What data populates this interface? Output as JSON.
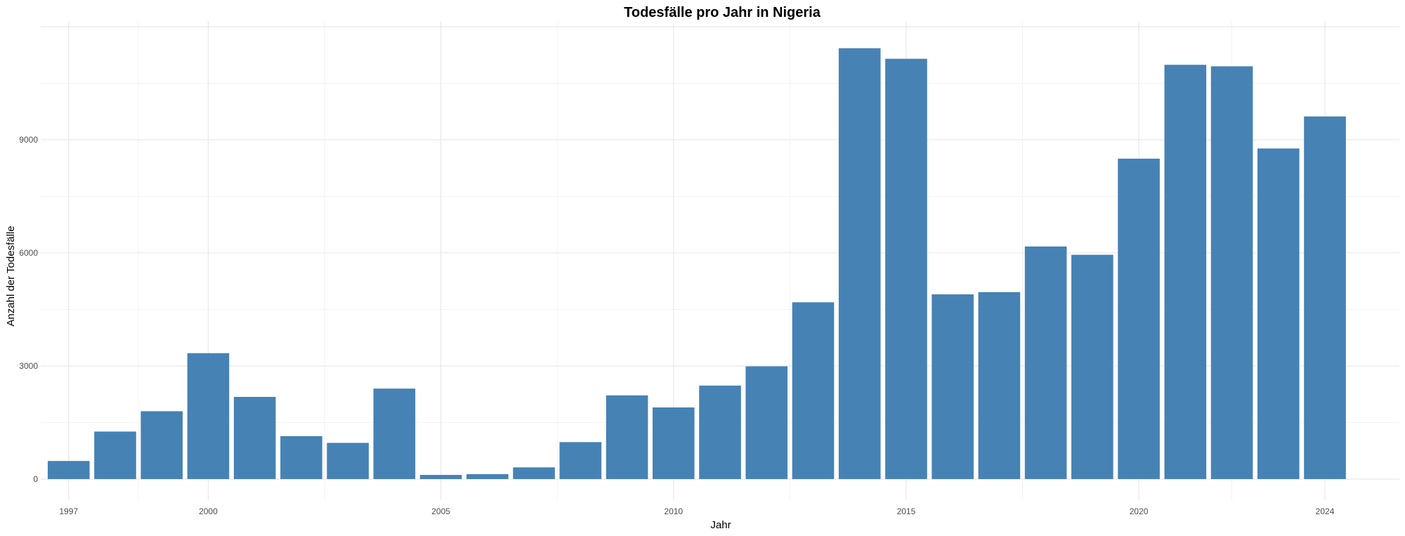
{
  "chart_data": {
    "type": "bar",
    "title": "Todesfälle pro Jahr in Nigeria",
    "xlabel": "Jahr",
    "ylabel": "Anzahl der Todesfälle",
    "color": "#4682B4",
    "background": "#ffffff",
    "grid": true,
    "legend": "none",
    "xlim": [
      1996.4,
      2025.6
    ],
    "ylim": [
      -560,
      12150
    ],
    "x_ticks": [
      1997,
      2000,
      2005,
      2010,
      2015,
      2020,
      2024
    ],
    "y_ticks": [
      0,
      3000,
      6000,
      9000
    ],
    "x": [
      1997,
      1998,
      1999,
      2000,
      2001,
      2002,
      2003,
      2004,
      2005,
      2006,
      2007,
      2008,
      2009,
      2010,
      2011,
      2012,
      2013,
      2014,
      2015,
      2016,
      2017,
      2018,
      2019,
      2020,
      2021,
      2022,
      2023,
      2024,
      2025
    ],
    "values": [
      480,
      1260,
      1800,
      3340,
      2180,
      1140,
      960,
      2400,
      110,
      130,
      310,
      980,
      2220,
      1900,
      2480,
      2990,
      4690,
      11430,
      11150,
      4900,
      4960,
      6170,
      5950,
      8500,
      10990,
      10950,
      8770,
      9620,
      0
    ]
  }
}
